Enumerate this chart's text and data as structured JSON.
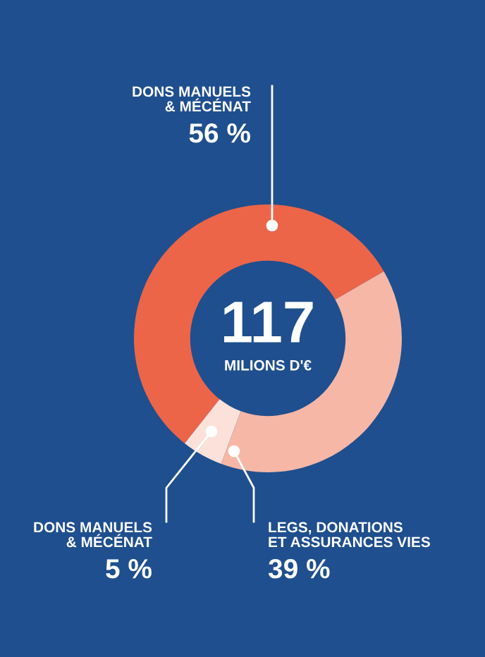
{
  "chart_data": {
    "type": "donut",
    "categories": [
      "DONS MANUELS\n& MÉCÉNAT",
      "DONS MANUELS\n& MÉCÉNAT",
      "LEGS, DONATIONS\nET ASSURANCES VIES"
    ],
    "values": [
      56,
      5,
      39
    ],
    "value_labels": [
      "56 %",
      "5 %",
      "39 %"
    ],
    "colors": [
      "#ec6549",
      "#fbe1d9",
      "#f6b7a7"
    ],
    "annotations": [
      "117",
      "MILIONS D'€"
    ]
  }
}
